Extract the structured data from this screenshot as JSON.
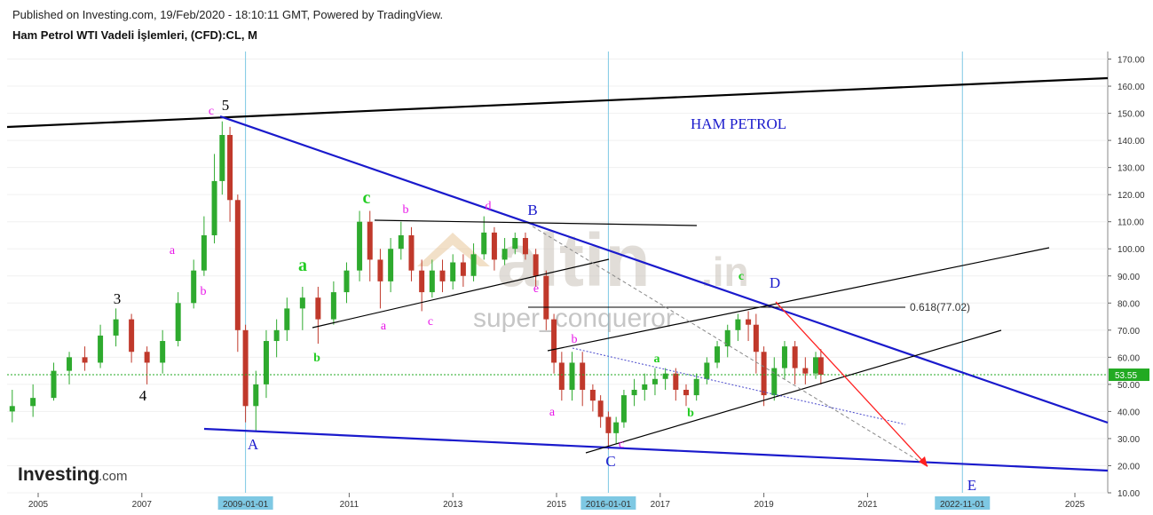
{
  "header": {
    "published": "Published on Investing.com, 19/Feb/2020 - 18:10:11 GMT, Powered by TradingView.",
    "instrument": "Ham Petrol WTI Vadeli İşlemleri, (CFD):CL, M"
  },
  "chart_data": {
    "type": "candlestick",
    "title": "HAM PETROL",
    "y_ticks": [
      10,
      20,
      30,
      40,
      50,
      60,
      70,
      80,
      90,
      100,
      110,
      120,
      130,
      140,
      150,
      160,
      170
    ],
    "ylim": [
      10,
      172
    ],
    "x_tick_labels": [
      "2005",
      "2007",
      "2011",
      "2013",
      "2015",
      "2017",
      "2019",
      "2021",
      "2025"
    ],
    "x_highlight_labels": [
      "2009-01-01",
      "2016-01-01",
      "2022-11-01"
    ],
    "current_price": "53.55",
    "fib_label": "0.618(77.02)",
    "watermark_main": "altin",
    "watermark_suffix": ".in",
    "watermark_sub": "super_conqueror",
    "candles": [
      [
        2004.5,
        40,
        42,
        48,
        36
      ],
      [
        2004.9,
        42,
        45,
        50,
        38
      ],
      [
        2005.3,
        45,
        55,
        58,
        44
      ],
      [
        2005.6,
        55,
        60,
        62,
        50
      ],
      [
        2005.9,
        60,
        58,
        64,
        55
      ],
      [
        2006.2,
        58,
        68,
        72,
        56
      ],
      [
        2006.5,
        68,
        74,
        78,
        64
      ],
      [
        2006.8,
        74,
        62,
        76,
        58
      ],
      [
        2007.1,
        62,
        58,
        64,
        50
      ],
      [
        2007.4,
        58,
        66,
        70,
        54
      ],
      [
        2007.7,
        66,
        80,
        84,
        64
      ],
      [
        2008.0,
        80,
        92,
        96,
        78
      ],
      [
        2008.2,
        92,
        105,
        112,
        90
      ],
      [
        2008.4,
        105,
        125,
        135,
        102
      ],
      [
        2008.55,
        125,
        142,
        147,
        120
      ],
      [
        2008.7,
        142,
        118,
        145,
        110
      ],
      [
        2008.85,
        118,
        70,
        120,
        62
      ],
      [
        2009.0,
        70,
        42,
        72,
        36
      ],
      [
        2009.2,
        42,
        50,
        55,
        33
      ],
      [
        2009.4,
        50,
        66,
        70,
        45
      ],
      [
        2009.6,
        66,
        70,
        74,
        60
      ],
      [
        2009.8,
        70,
        78,
        82,
        66
      ],
      [
        2010.1,
        78,
        82,
        86,
        70
      ],
      [
        2010.4,
        82,
        74,
        86,
        65
      ],
      [
        2010.7,
        74,
        84,
        88,
        72
      ],
      [
        2010.95,
        84,
        92,
        95,
        80
      ],
      [
        2011.2,
        92,
        110,
        114,
        88
      ],
      [
        2011.4,
        110,
        96,
        114,
        88
      ],
      [
        2011.6,
        96,
        88,
        100,
        78
      ],
      [
        2011.8,
        88,
        100,
        104,
        84
      ],
      [
        2012.0,
        100,
        105,
        110,
        96
      ],
      [
        2012.2,
        105,
        92,
        108,
        88
      ],
      [
        2012.4,
        92,
        84,
        96,
        77
      ],
      [
        2012.6,
        84,
        92,
        96,
        82
      ],
      [
        2012.8,
        92,
        88,
        96,
        84
      ],
      [
        2013.0,
        88,
        95,
        98,
        85
      ],
      [
        2013.2,
        95,
        90,
        98,
        86
      ],
      [
        2013.4,
        90,
        98,
        102,
        88
      ],
      [
        2013.6,
        98,
        106,
        112,
        96
      ],
      [
        2013.8,
        106,
        96,
        108,
        92
      ],
      [
        2014.0,
        96,
        100,
        104,
        94
      ],
      [
        2014.2,
        100,
        104,
        106,
        98
      ],
      [
        2014.4,
        104,
        98,
        106,
        96
      ],
      [
        2014.6,
        98,
        90,
        100,
        86
      ],
      [
        2014.8,
        90,
        74,
        92,
        70
      ],
      [
        2014.95,
        74,
        58,
        76,
        54
      ],
      [
        2015.1,
        58,
        48,
        62,
        44
      ],
      [
        2015.3,
        48,
        58,
        62,
        44
      ],
      [
        2015.5,
        58,
        48,
        62,
        42
      ],
      [
        2015.7,
        48,
        44,
        50,
        40
      ],
      [
        2015.85,
        44,
        38,
        46,
        34
      ],
      [
        2016.0,
        38,
        32,
        40,
        26
      ],
      [
        2016.15,
        32,
        36,
        38,
        28
      ],
      [
        2016.3,
        36,
        46,
        48,
        34
      ],
      [
        2016.5,
        46,
        48,
        52,
        42
      ],
      [
        2016.7,
        48,
        50,
        54,
        44
      ],
      [
        2016.9,
        50,
        52,
        56,
        46
      ],
      [
        2017.1,
        52,
        54,
        56,
        48
      ],
      [
        2017.3,
        54,
        48,
        56,
        44
      ],
      [
        2017.5,
        48,
        46,
        50,
        42
      ],
      [
        2017.7,
        46,
        52,
        54,
        44
      ],
      [
        2017.9,
        52,
        58,
        60,
        50
      ],
      [
        2018.1,
        58,
        64,
        66,
        56
      ],
      [
        2018.3,
        64,
        70,
        72,
        60
      ],
      [
        2018.5,
        70,
        74,
        76,
        66
      ],
      [
        2018.7,
        74,
        72,
        77,
        66
      ],
      [
        2018.85,
        72,
        62,
        76,
        54
      ],
      [
        2019.0,
        62,
        46,
        64,
        42
      ],
      [
        2019.2,
        46,
        56,
        60,
        44
      ],
      [
        2019.4,
        56,
        64,
        66,
        52
      ],
      [
        2019.6,
        64,
        56,
        66,
        50
      ],
      [
        2019.8,
        56,
        54,
        60,
        50
      ],
      [
        2020.0,
        54,
        60,
        62,
        52
      ],
      [
        2020.1,
        60,
        53.55,
        63,
        50
      ]
    ],
    "wave_labels": [
      {
        "t": "5",
        "c": "#000000"
      },
      {
        "t": "c",
        "c": "#e815e8"
      },
      {
        "t": "3",
        "c": "#000000"
      },
      {
        "t": "4",
        "c": "#000000"
      },
      {
        "t": "a",
        "c": "#e815e8"
      },
      {
        "t": "b",
        "c": "#e815e8"
      },
      {
        "t": "A",
        "c": "#1a1acc"
      },
      {
        "t": "a",
        "c": "#22cc22"
      },
      {
        "t": "b",
        "c": "#22cc22"
      },
      {
        "t": "c",
        "c": "#22cc22"
      },
      {
        "t": "b",
        "c": "#e815e8"
      },
      {
        "t": "a",
        "c": "#e815e8"
      },
      {
        "t": "c",
        "c": "#e815e8"
      },
      {
        "t": "d",
        "c": "#e815e8"
      },
      {
        "t": "B",
        "c": "#1a1acc"
      },
      {
        "t": "e",
        "c": "#e815e8"
      },
      {
        "t": "b",
        "c": "#e815e8"
      },
      {
        "t": "a",
        "c": "#e815e8"
      },
      {
        "t": "c",
        "c": "#e815e8"
      },
      {
        "t": "C",
        "c": "#1a1acc"
      },
      {
        "t": "a",
        "c": "#22cc22"
      },
      {
        "t": "b",
        "c": "#22cc22"
      },
      {
        "t": "c",
        "c": "#22cc22"
      },
      {
        "t": "D",
        "c": "#1a1acc"
      },
      {
        "t": "E",
        "c": "#1a1acc"
      }
    ]
  },
  "branding": {
    "logo_main": "Investing",
    "logo_suffix": ".com"
  }
}
